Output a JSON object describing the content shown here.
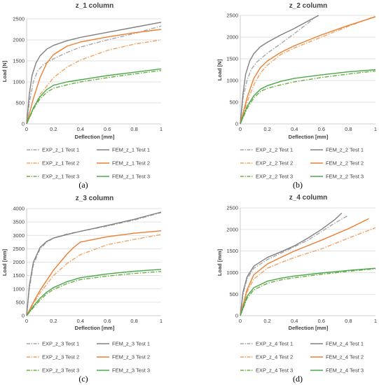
{
  "chart_data": [
    {
      "type": "line",
      "panel_label": "(a)",
      "title": "z_1 column",
      "xlabel": "Deflection [mm]",
      "ylabel": "Load [N]",
      "xlim": [
        0,
        1
      ],
      "ylim": [
        0,
        2500
      ],
      "xticks": [
        "0",
        "0.2",
        "0.4",
        "0.6",
        "0.8",
        "1"
      ],
      "yticks": [
        "0",
        "500",
        "1000",
        "1500",
        "2000",
        "2500"
      ],
      "grid": "horizontal",
      "legend_position": "bottom",
      "series": [
        {
          "name": "EXP_z_1 Test 1",
          "style": "dashdot",
          "color": "#a6a6a6",
          "x": [
            0,
            0.02,
            0.05,
            0.08,
            0.12,
            0.2,
            0.3,
            0.4,
            0.6,
            0.8,
            1.0
          ],
          "y": [
            0,
            500,
            1000,
            1250,
            1400,
            1550,
            1700,
            1830,
            2000,
            2150,
            2330
          ]
        },
        {
          "name": "FEM_z_1 Test 1",
          "style": "solid",
          "color": "#808080",
          "x": [
            0,
            0.02,
            0.04,
            0.07,
            0.1,
            0.15,
            0.2,
            0.3,
            0.4,
            0.6,
            0.8,
            1.0
          ],
          "y": [
            0,
            700,
            1150,
            1450,
            1620,
            1780,
            1870,
            1980,
            2060,
            2180,
            2300,
            2420
          ]
        },
        {
          "name": "EXP_z_1 Test 2",
          "style": "dashdot",
          "color": "#f4a261",
          "x": [
            0,
            0.05,
            0.1,
            0.2,
            0.3,
            0.4,
            0.6,
            0.8,
            1.0
          ],
          "y": [
            0,
            350,
            700,
            1100,
            1350,
            1520,
            1750,
            1900,
            2000
          ]
        },
        {
          "name": "FEM_z_1 Test 2",
          "style": "solid",
          "color": "#ed7d31",
          "x": [
            0,
            0.05,
            0.1,
            0.15,
            0.2,
            0.3,
            0.4,
            0.6,
            0.8,
            1.0
          ],
          "y": [
            0,
            600,
            1100,
            1450,
            1650,
            1850,
            1950,
            2070,
            2170,
            2250
          ]
        },
        {
          "name": "EXP_z_1 Test 3",
          "style": "dashdot",
          "color": "#70ad47",
          "x": [
            0,
            0.05,
            0.1,
            0.15,
            0.2,
            0.3,
            0.4,
            0.6,
            0.8,
            1.0
          ],
          "y": [
            0,
            350,
            600,
            750,
            850,
            930,
            1000,
            1100,
            1190,
            1270
          ]
        },
        {
          "name": "FEM_z_1 Test 3",
          "style": "solid",
          "color": "#4aa84a",
          "x": [
            0,
            0.05,
            0.1,
            0.15,
            0.2,
            0.3,
            0.4,
            0.6,
            0.8,
            1.0
          ],
          "y": [
            0,
            380,
            650,
            820,
            920,
            1000,
            1050,
            1150,
            1230,
            1310
          ]
        }
      ]
    },
    {
      "type": "line",
      "panel_label": "(b)",
      "title": "z_2 column",
      "xlabel": "Deflection [mm]",
      "ylabel": "Load [N]",
      "xlim": [
        0,
        1
      ],
      "ylim": [
        0,
        2500
      ],
      "xticks": [
        "0",
        "0.2",
        "0.4",
        "0.6",
        "0.8",
        "1"
      ],
      "yticks": [
        "0",
        "500",
        "1000",
        "1500",
        "2000",
        "2500"
      ],
      "grid": "horizontal",
      "legend_position": "bottom",
      "series": [
        {
          "name": "EXP_z_2 Test 1",
          "style": "dashdot",
          "color": "#a6a6a6",
          "x": [
            0,
            0.02,
            0.05,
            0.08,
            0.12,
            0.2,
            0.3,
            0.4,
            0.5,
            0.55
          ],
          "y": [
            0,
            600,
            1000,
            1250,
            1420,
            1630,
            1850,
            2080,
            2320,
            2450
          ]
        },
        {
          "name": "FEM_z_2 Test 1",
          "style": "solid",
          "color": "#808080",
          "x": [
            0,
            0.02,
            0.04,
            0.07,
            0.1,
            0.15,
            0.2,
            0.3,
            0.4,
            0.5,
            0.58
          ],
          "y": [
            0,
            700,
            1150,
            1450,
            1620,
            1780,
            1880,
            2050,
            2200,
            2370,
            2500
          ]
        },
        {
          "name": "EXP_z_2 Test 2",
          "style": "dashdot",
          "color": "#f4a261",
          "x": [
            0,
            0.05,
            0.1,
            0.15,
            0.2,
            0.3,
            0.4,
            0.6,
            0.8,
            1.0
          ],
          "y": [
            0,
            500,
            900,
            1180,
            1350,
            1600,
            1750,
            2000,
            2250,
            2480
          ]
        },
        {
          "name": "FEM_z_2 Test 2",
          "style": "solid",
          "color": "#ed7d31",
          "x": [
            0,
            0.05,
            0.1,
            0.15,
            0.2,
            0.3,
            0.4,
            0.6,
            0.8,
            1.0
          ],
          "y": [
            0,
            600,
            1050,
            1300,
            1450,
            1650,
            1800,
            2050,
            2270,
            2470
          ]
        },
        {
          "name": "EXP_z_2 Test 3",
          "style": "dashdot",
          "color": "#70ad47",
          "x": [
            0,
            0.05,
            0.1,
            0.15,
            0.2,
            0.3,
            0.4,
            0.6,
            0.8,
            1.0
          ],
          "y": [
            0,
            350,
            600,
            750,
            820,
            900,
            970,
            1070,
            1150,
            1220
          ]
        },
        {
          "name": "FEM_z_2 Test 3",
          "style": "solid",
          "color": "#4aa84a",
          "x": [
            0,
            0.05,
            0.1,
            0.15,
            0.2,
            0.3,
            0.4,
            0.6,
            0.8,
            1.0
          ],
          "y": [
            0,
            400,
            650,
            800,
            880,
            980,
            1050,
            1130,
            1200,
            1250
          ]
        }
      ]
    },
    {
      "type": "line",
      "panel_label": "(c)",
      "title": "z_3 column",
      "xlabel": "Deflection [mm]",
      "ylabel": "Load [mm]",
      "xlim": [
        0,
        1
      ],
      "ylim": [
        0,
        4000
      ],
      "xticks": [
        "0",
        "0.2",
        "0.4",
        "0.6",
        "0.8",
        "1"
      ],
      "yticks": [
        "0",
        "500",
        "1000",
        "1500",
        "2000",
        "2500",
        "3000",
        "3500",
        "4000"
      ],
      "grid": "horizontal",
      "legend_position": "bottom",
      "series": [
        {
          "name": "EXP_z_3 Test 1",
          "style": "dashdot",
          "color": "#a6a6a6",
          "x": [
            0,
            0.02,
            0.05,
            0.1,
            0.15,
            0.2,
            0.3,
            0.4,
            0.6,
            0.8,
            1.0
          ],
          "y": [
            0,
            1000,
            1900,
            2500,
            2750,
            2900,
            3050,
            3150,
            3350,
            3570,
            3850
          ]
        },
        {
          "name": "FEM_z_3 Test 1",
          "style": "solid",
          "color": "#808080",
          "x": [
            0,
            0.02,
            0.05,
            0.1,
            0.15,
            0.2,
            0.3,
            0.4,
            0.6,
            0.8,
            1.0
          ],
          "y": [
            0,
            1100,
            2000,
            2550,
            2780,
            2900,
            3030,
            3150,
            3370,
            3600,
            3870
          ]
        },
        {
          "name": "EXP_z_3 Test 2",
          "style": "dashdot",
          "color": "#f4a261",
          "x": [
            0,
            0.05,
            0.1,
            0.2,
            0.3,
            0.4,
            0.6,
            0.8,
            1.0
          ],
          "y": [
            0,
            450,
            850,
            1500,
            1950,
            2280,
            2650,
            2850,
            3030
          ]
        },
        {
          "name": "FEM_z_3 Test 2",
          "style": "solid",
          "color": "#ed7d31",
          "x": [
            0,
            0.05,
            0.1,
            0.2,
            0.3,
            0.35,
            0.4,
            0.6,
            0.8,
            1.0
          ],
          "y": [
            0,
            500,
            950,
            1700,
            2300,
            2550,
            2750,
            2950,
            3080,
            3170
          ]
        },
        {
          "name": "EXP_z_3 Test 3",
          "style": "dashdot",
          "color": "#70ad47",
          "x": [
            0,
            0.05,
            0.1,
            0.15,
            0.2,
            0.3,
            0.4,
            0.6,
            0.8,
            1.0
          ],
          "y": [
            0,
            300,
            580,
            820,
            980,
            1200,
            1350,
            1480,
            1580,
            1650
          ]
        },
        {
          "name": "FEM_z_3 Test 3",
          "style": "solid",
          "color": "#4aa84a",
          "x": [
            0,
            0.05,
            0.1,
            0.15,
            0.2,
            0.3,
            0.4,
            0.6,
            0.8,
            1.0
          ],
          "y": [
            0,
            350,
            650,
            880,
            1050,
            1270,
            1420,
            1560,
            1660,
            1730
          ]
        }
      ]
    },
    {
      "type": "line",
      "panel_label": "(d)",
      "title": "z_4 column",
      "xlabel": "Deflection [mm]",
      "ylabel": "Load [mm]",
      "xlim": [
        0,
        1
      ],
      "ylim": [
        0,
        2500
      ],
      "xticks": [
        "0",
        "0.2",
        "0.4",
        "0.6",
        "0.8",
        "1"
      ],
      "yticks": [
        "0",
        "500",
        "1000",
        "1500",
        "2000",
        "2500"
      ],
      "grid": "horizontal",
      "legend_position": "bottom",
      "series": [
        {
          "name": "EXP_z_4 Test 1",
          "style": "dashdot",
          "color": "#a6a6a6",
          "x": [
            0,
            0.02,
            0.05,
            0.1,
            0.2,
            0.3,
            0.4,
            0.5,
            0.6,
            0.7,
            0.8
          ],
          "y": [
            0,
            500,
            850,
            1100,
            1300,
            1450,
            1600,
            1750,
            1950,
            2150,
            2330
          ]
        },
        {
          "name": "FEM_z_4 Test 1",
          "style": "solid",
          "color": "#808080",
          "x": [
            0,
            0.02,
            0.05,
            0.1,
            0.2,
            0.3,
            0.4,
            0.5,
            0.6,
            0.7,
            0.75
          ],
          "y": [
            0,
            550,
            900,
            1150,
            1350,
            1480,
            1620,
            1800,
            2000,
            2230,
            2380
          ]
        },
        {
          "name": "EXP_z_4 Test 2",
          "style": "dashdot",
          "color": "#f4a261",
          "x": [
            0,
            0.05,
            0.1,
            0.2,
            0.3,
            0.4,
            0.6,
            0.8,
            1.0
          ],
          "y": [
            0,
            550,
            850,
            1100,
            1230,
            1350,
            1550,
            1800,
            2040
          ]
        },
        {
          "name": "FEM_z_4 Test 2",
          "style": "solid",
          "color": "#ed7d31",
          "x": [
            0,
            0.05,
            0.1,
            0.2,
            0.3,
            0.4,
            0.6,
            0.8,
            0.95
          ],
          "y": [
            0,
            600,
            950,
            1200,
            1350,
            1500,
            1750,
            2020,
            2250
          ]
        },
        {
          "name": "EXP_z_4 Test 3",
          "style": "dashdot",
          "color": "#70ad47",
          "x": [
            0,
            0.05,
            0.1,
            0.2,
            0.3,
            0.4,
            0.6,
            0.8,
            1.0
          ],
          "y": [
            0,
            400,
            600,
            750,
            830,
            880,
            960,
            1030,
            1090
          ]
        },
        {
          "name": "FEM_z_4 Test 3",
          "style": "solid",
          "color": "#4aa84a",
          "x": [
            0,
            0.05,
            0.1,
            0.2,
            0.3,
            0.4,
            0.6,
            0.8,
            1.0
          ],
          "y": [
            0,
            450,
            650,
            800,
            870,
            920,
            990,
            1050,
            1100
          ]
        }
      ]
    }
  ]
}
